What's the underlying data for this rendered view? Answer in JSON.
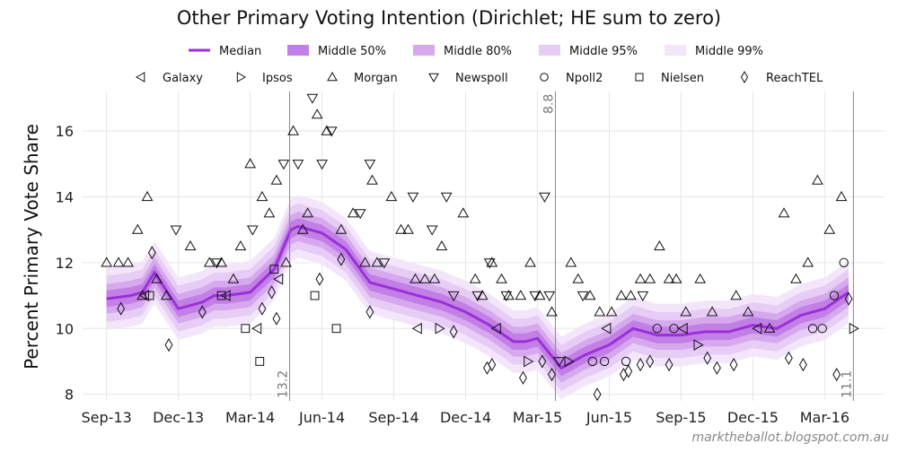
{
  "footer": {
    "credit": "marktheballot.blogspot.com.au"
  },
  "chart_data": {
    "type": "line",
    "title": "Other Primary Voting Intention (Dirichlet; HE sum to zero)",
    "xlabel": "",
    "ylabel": "Percent Primary Vote Share",
    "x_ticks": [
      "Sep-13",
      "Dec-13",
      "Mar-14",
      "Jun-14",
      "Sep-14",
      "Dec-14",
      "Mar-15",
      "Jun-15",
      "Sep-15",
      "Dec-15",
      "Mar-16"
    ],
    "y_ticks": [
      8,
      10,
      12,
      14,
      16
    ],
    "ylim": [
      7.8,
      17.2
    ],
    "grid": true,
    "legend_position": "top",
    "legend_bands": [
      {
        "name": "Median",
        "color": "#9b30d9"
      },
      {
        "name": "Middle 50%",
        "color": "#c27fe5"
      },
      {
        "name": "Middle 80%",
        "color": "#d6a9ee"
      },
      {
        "name": "Middle 95%",
        "color": "#e7cdf5"
      },
      {
        "name": "Middle 99%",
        "color": "#f3e6fa"
      }
    ],
    "legend_markers": [
      {
        "name": "Galaxy",
        "marker": "tri-left"
      },
      {
        "name": "Ipsos",
        "marker": "tri-right"
      },
      {
        "name": "Morgan",
        "marker": "tri-up"
      },
      {
        "name": "Newspoll",
        "marker": "tri-down"
      },
      {
        "name": "Npoll2",
        "marker": "circle"
      },
      {
        "name": "Nielsen",
        "marker": "square"
      },
      {
        "name": "ReachTEL",
        "marker": "diamond"
      }
    ],
    "median": {
      "t": [
        0,
        1,
        1.5,
        2,
        3,
        3.5,
        4,
        4.5,
        5,
        6,
        7,
        7.7,
        8,
        9,
        10,
        11,
        12,
        13,
        14,
        15,
        16,
        17,
        17.5,
        18,
        19,
        20,
        21,
        22,
        23,
        24,
        25,
        26,
        27,
        28,
        29,
        30,
        31
      ],
      "value": [
        10.9,
        11.0,
        11.1,
        11.7,
        10.6,
        10.7,
        10.8,
        11.0,
        11.0,
        11.1,
        11.8,
        13.0,
        13.1,
        12.9,
        12.4,
        11.4,
        11.2,
        11.0,
        10.8,
        10.5,
        10.1,
        9.6,
        9.6,
        9.7,
        8.8,
        9.2,
        9.5,
        10.0,
        9.8,
        9.8,
        9.9,
        9.9,
        10.1,
        10.0,
        10.4,
        10.6,
        11.1
      ]
    },
    "bands": {
      "Middle 50%": 0.25,
      "Middle 80%": 0.45,
      "Middle 95%": 0.7,
      "Middle 99%": 0.95
    },
    "vertical_markers": [
      {
        "t": 7.65,
        "label": "13.2"
      },
      {
        "t": 18.75,
        "label": "8.8"
      },
      {
        "t": 31.2,
        "label": "11.1"
      }
    ],
    "polls": [
      {
        "t": 0.0,
        "value": 12.0,
        "house": "Morgan"
      },
      {
        "t": 0.5,
        "value": 12.0,
        "house": "Morgan"
      },
      {
        "t": 0.9,
        "value": 12.0,
        "house": "Morgan"
      },
      {
        "t": 1.3,
        "value": 13.0,
        "house": "Morgan"
      },
      {
        "t": 1.5,
        "value": 11.0,
        "house": "Morgan"
      },
      {
        "t": 1.7,
        "value": 14.0,
        "house": "Morgan"
      },
      {
        "t": 2.1,
        "value": 11.5,
        "house": "Morgan"
      },
      {
        "t": 2.5,
        "value": 11.0,
        "house": "Morgan"
      },
      {
        "t": 3.5,
        "value": 12.5,
        "house": "Morgan"
      },
      {
        "t": 4.3,
        "value": 12.0,
        "house": "Morgan"
      },
      {
        "t": 4.8,
        "value": 12.0,
        "house": "Morgan"
      },
      {
        "t": 5.3,
        "value": 11.5,
        "house": "Morgan"
      },
      {
        "t": 5.6,
        "value": 12.5,
        "house": "Morgan"
      },
      {
        "t": 6.0,
        "value": 15.0,
        "house": "Morgan"
      },
      {
        "t": 6.5,
        "value": 14.0,
        "house": "Morgan"
      },
      {
        "t": 6.8,
        "value": 13.5,
        "house": "Morgan"
      },
      {
        "t": 7.1,
        "value": 14.5,
        "house": "Morgan"
      },
      {
        "t": 7.5,
        "value": 12.0,
        "house": "Morgan"
      },
      {
        "t": 7.8,
        "value": 16.0,
        "house": "Morgan"
      },
      {
        "t": 8.2,
        "value": 13.0,
        "house": "Morgan"
      },
      {
        "t": 8.4,
        "value": 13.5,
        "house": "Morgan"
      },
      {
        "t": 8.8,
        "value": 16.5,
        "house": "Morgan"
      },
      {
        "t": 9.2,
        "value": 16.0,
        "house": "Morgan"
      },
      {
        "t": 9.8,
        "value": 13.0,
        "house": "Morgan"
      },
      {
        "t": 10.3,
        "value": 13.5,
        "house": "Morgan"
      },
      {
        "t": 10.8,
        "value": 12.0,
        "house": "Morgan"
      },
      {
        "t": 11.1,
        "value": 14.5,
        "house": "Morgan"
      },
      {
        "t": 11.3,
        "value": 12.0,
        "house": "Morgan"
      },
      {
        "t": 11.9,
        "value": 14.0,
        "house": "Morgan"
      },
      {
        "t": 12.3,
        "value": 13.0,
        "house": "Morgan"
      },
      {
        "t": 12.6,
        "value": 13.0,
        "house": "Morgan"
      },
      {
        "t": 12.9,
        "value": 11.5,
        "house": "Morgan"
      },
      {
        "t": 13.3,
        "value": 11.5,
        "house": "Morgan"
      },
      {
        "t": 13.7,
        "value": 11.5,
        "house": "Morgan"
      },
      {
        "t": 14.0,
        "value": 12.5,
        "house": "Morgan"
      },
      {
        "t": 14.9,
        "value": 13.5,
        "house": "Morgan"
      },
      {
        "t": 15.4,
        "value": 11.5,
        "house": "Morgan"
      },
      {
        "t": 15.7,
        "value": 11.0,
        "house": "Morgan"
      },
      {
        "t": 16.1,
        "value": 12.0,
        "house": "Morgan"
      },
      {
        "t": 16.5,
        "value": 11.5,
        "house": "Morgan"
      },
      {
        "t": 16.8,
        "value": 11.0,
        "house": "Morgan"
      },
      {
        "t": 17.3,
        "value": 11.0,
        "house": "Morgan"
      },
      {
        "t": 17.7,
        "value": 12.0,
        "house": "Morgan"
      },
      {
        "t": 18.1,
        "value": 11.0,
        "house": "Morgan"
      },
      {
        "t": 18.6,
        "value": 10.5,
        "house": "Morgan"
      },
      {
        "t": 19.4,
        "value": 12.0,
        "house": "Morgan"
      },
      {
        "t": 19.7,
        "value": 11.5,
        "house": "Morgan"
      },
      {
        "t": 20.2,
        "value": 11.0,
        "house": "Morgan"
      },
      {
        "t": 20.6,
        "value": 10.5,
        "house": "Morgan"
      },
      {
        "t": 21.1,
        "value": 10.5,
        "house": "Morgan"
      },
      {
        "t": 21.5,
        "value": 11.0,
        "house": "Morgan"
      },
      {
        "t": 21.9,
        "value": 11.0,
        "house": "Morgan"
      },
      {
        "t": 22.3,
        "value": 11.5,
        "house": "Morgan"
      },
      {
        "t": 22.7,
        "value": 11.5,
        "house": "Morgan"
      },
      {
        "t": 23.1,
        "value": 12.5,
        "house": "Morgan"
      },
      {
        "t": 23.5,
        "value": 11.5,
        "house": "Morgan"
      },
      {
        "t": 23.8,
        "value": 11.5,
        "house": "Morgan"
      },
      {
        "t": 24.2,
        "value": 10.5,
        "house": "Morgan"
      },
      {
        "t": 24.8,
        "value": 11.5,
        "house": "Morgan"
      },
      {
        "t": 25.3,
        "value": 10.5,
        "house": "Morgan"
      },
      {
        "t": 26.3,
        "value": 11.0,
        "house": "Morgan"
      },
      {
        "t": 26.8,
        "value": 10.5,
        "house": "Morgan"
      },
      {
        "t": 27.7,
        "value": 10.0,
        "house": "Morgan"
      },
      {
        "t": 28.3,
        "value": 13.5,
        "house": "Morgan"
      },
      {
        "t": 28.8,
        "value": 11.5,
        "house": "Morgan"
      },
      {
        "t": 29.3,
        "value": 12.0,
        "house": "Morgan"
      },
      {
        "t": 29.7,
        "value": 14.5,
        "house": "Morgan"
      },
      {
        "t": 30.2,
        "value": 13.0,
        "house": "Morgan"
      },
      {
        "t": 30.7,
        "value": 14.0,
        "house": "Morgan"
      },
      {
        "t": 1.6,
        "value": 11.0,
        "house": "Galaxy"
      },
      {
        "t": 5.0,
        "value": 11.0,
        "house": "Galaxy"
      },
      {
        "t": 6.3,
        "value": 10.0,
        "house": "Galaxy"
      },
      {
        "t": 7.2,
        "value": 11.5,
        "house": "Galaxy"
      },
      {
        "t": 13.0,
        "value": 10.0,
        "house": "Galaxy"
      },
      {
        "t": 16.3,
        "value": 10.0,
        "house": "Galaxy"
      },
      {
        "t": 20.9,
        "value": 10.0,
        "house": "Galaxy"
      },
      {
        "t": 24.1,
        "value": 10.0,
        "house": "Galaxy"
      },
      {
        "t": 27.2,
        "value": 10.0,
        "house": "Galaxy"
      },
      {
        "t": 13.9,
        "value": 10.0,
        "house": "Ipsos"
      },
      {
        "t": 17.6,
        "value": 9.0,
        "house": "Ipsos"
      },
      {
        "t": 19.3,
        "value": 9.0,
        "house": "Ipsos"
      },
      {
        "t": 24.7,
        "value": 9.5,
        "house": "Ipsos"
      },
      {
        "t": 31.2,
        "value": 10.0,
        "house": "Ipsos"
      },
      {
        "t": 2.9,
        "value": 13.0,
        "house": "Newspoll"
      },
      {
        "t": 4.6,
        "value": 12.0,
        "house": "Newspoll"
      },
      {
        "t": 6.1,
        "value": 13.0,
        "house": "Newspoll"
      },
      {
        "t": 7.4,
        "value": 15.0,
        "house": "Newspoll"
      },
      {
        "t": 8.0,
        "value": 15.0,
        "house": "Newspoll"
      },
      {
        "t": 8.6,
        "value": 17.0,
        "house": "Newspoll"
      },
      {
        "t": 9.0,
        "value": 15.0,
        "house": "Newspoll"
      },
      {
        "t": 9.4,
        "value": 16.0,
        "house": "Newspoll"
      },
      {
        "t": 10.6,
        "value": 13.5,
        "house": "Newspoll"
      },
      {
        "t": 11.0,
        "value": 15.0,
        "house": "Newspoll"
      },
      {
        "t": 11.6,
        "value": 12.0,
        "house": "Newspoll"
      },
      {
        "t": 12.8,
        "value": 14.0,
        "house": "Newspoll"
      },
      {
        "t": 13.6,
        "value": 13.0,
        "house": "Newspoll"
      },
      {
        "t": 14.2,
        "value": 14.0,
        "house": "Newspoll"
      },
      {
        "t": 14.5,
        "value": 11.0,
        "house": "Newspoll"
      },
      {
        "t": 15.5,
        "value": 11.0,
        "house": "Newspoll"
      },
      {
        "t": 16.0,
        "value": 12.0,
        "house": "Newspoll"
      },
      {
        "t": 16.7,
        "value": 11.0,
        "house": "Newspoll"
      },
      {
        "t": 17.9,
        "value": 11.0,
        "house": "Newspoll"
      },
      {
        "t": 18.3,
        "value": 14.0,
        "house": "Newspoll"
      },
      {
        "t": 18.5,
        "value": 11.0,
        "house": "Newspoll"
      },
      {
        "t": 18.9,
        "value": 9.0,
        "house": "Newspoll"
      },
      {
        "t": 19.9,
        "value": 11.0,
        "house": "Newspoll"
      },
      {
        "t": 22.4,
        "value": 11.0,
        "house": "Newspoll"
      },
      {
        "t": 20.3,
        "value": 9.0,
        "house": "Npoll2"
      },
      {
        "t": 20.8,
        "value": 9.0,
        "house": "Npoll2"
      },
      {
        "t": 21.7,
        "value": 9.0,
        "house": "Npoll2"
      },
      {
        "t": 23.0,
        "value": 10.0,
        "house": "Npoll2"
      },
      {
        "t": 23.7,
        "value": 10.0,
        "house": "Npoll2"
      },
      {
        "t": 29.5,
        "value": 10.0,
        "house": "Npoll2"
      },
      {
        "t": 29.9,
        "value": 10.0,
        "house": "Npoll2"
      },
      {
        "t": 30.4,
        "value": 11.0,
        "house": "Npoll2"
      },
      {
        "t": 30.8,
        "value": 12.0,
        "house": "Npoll2"
      },
      {
        "t": 1.8,
        "value": 11.0,
        "house": "Nielsen"
      },
      {
        "t": 4.8,
        "value": 11.0,
        "house": "Nielsen"
      },
      {
        "t": 5.8,
        "value": 10.0,
        "house": "Nielsen"
      },
      {
        "t": 6.4,
        "value": 9.0,
        "house": "Nielsen"
      },
      {
        "t": 7.0,
        "value": 11.8,
        "house": "Nielsen"
      },
      {
        "t": 8.7,
        "value": 11.0,
        "house": "Nielsen"
      },
      {
        "t": 9.6,
        "value": 10.0,
        "house": "Nielsen"
      },
      {
        "t": 0.6,
        "value": 10.6,
        "house": "ReachTEL"
      },
      {
        "t": 1.9,
        "value": 12.3,
        "house": "ReachTEL"
      },
      {
        "t": 2.6,
        "value": 9.5,
        "house": "ReachTEL"
      },
      {
        "t": 4.0,
        "value": 10.5,
        "house": "ReachTEL"
      },
      {
        "t": 6.5,
        "value": 10.6,
        "house": "ReachTEL"
      },
      {
        "t": 6.9,
        "value": 11.1,
        "house": "ReachTEL"
      },
      {
        "t": 7.1,
        "value": 10.3,
        "house": "ReachTEL"
      },
      {
        "t": 8.9,
        "value": 11.5,
        "house": "ReachTEL"
      },
      {
        "t": 9.8,
        "value": 12.1,
        "house": "ReachTEL"
      },
      {
        "t": 11.0,
        "value": 10.5,
        "house": "ReachTEL"
      },
      {
        "t": 14.5,
        "value": 9.9,
        "house": "ReachTEL"
      },
      {
        "t": 15.9,
        "value": 8.8,
        "house": "ReachTEL"
      },
      {
        "t": 16.1,
        "value": 8.9,
        "house": "ReachTEL"
      },
      {
        "t": 17.4,
        "value": 8.5,
        "house": "ReachTEL"
      },
      {
        "t": 18.2,
        "value": 9.0,
        "house": "ReachTEL"
      },
      {
        "t": 18.6,
        "value": 8.6,
        "house": "ReachTEL"
      },
      {
        "t": 20.5,
        "value": 8.0,
        "house": "ReachTEL"
      },
      {
        "t": 21.6,
        "value": 8.6,
        "house": "ReachTEL"
      },
      {
        "t": 21.8,
        "value": 8.7,
        "house": "ReachTEL"
      },
      {
        "t": 22.3,
        "value": 8.9,
        "house": "ReachTEL"
      },
      {
        "t": 22.7,
        "value": 9.0,
        "house": "ReachTEL"
      },
      {
        "t": 23.5,
        "value": 8.9,
        "house": "ReachTEL"
      },
      {
        "t": 25.1,
        "value": 9.1,
        "house": "ReachTEL"
      },
      {
        "t": 25.5,
        "value": 8.8,
        "house": "ReachTEL"
      },
      {
        "t": 26.2,
        "value": 8.9,
        "house": "ReachTEL"
      },
      {
        "t": 28.5,
        "value": 9.1,
        "house": "ReachTEL"
      },
      {
        "t": 29.1,
        "value": 8.9,
        "house": "ReachTEL"
      },
      {
        "t": 30.5,
        "value": 8.6,
        "house": "ReachTEL"
      },
      {
        "t": 31.0,
        "value": 10.9,
        "house": "ReachTEL"
      }
    ]
  }
}
